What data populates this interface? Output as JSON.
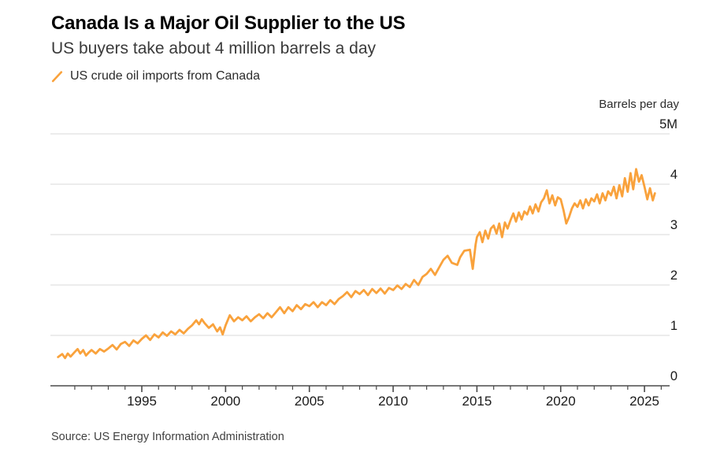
{
  "header": {
    "title": "Canada Is a Major Oil Supplier to the US",
    "subtitle": "US buyers take about 4 million barrels a day"
  },
  "source": {
    "text": "Source: US Energy Information Administration"
  },
  "icons": {
    "legend_key": "orange-slash-icon"
  },
  "colors": {
    "series_orange": "#F9A23C",
    "grid": "#d8d8d8",
    "axis": "#4a4a4a",
    "title_text": "#000000",
    "subtitle_text": "#3a3a3a",
    "tick_text": "#1a1a1a",
    "background": "#ffffff"
  },
  "chart_data": {
    "type": "line",
    "title": "Canada Is a Major Oil Supplier to the US",
    "subtitle": "US buyers take about 4 million barrels a day",
    "legend": "US crude oil imports from Canada",
    "ylabel": "Barrels per day",
    "unit": "million barrels per day",
    "xlim": [
      1990,
      2026
    ],
    "ylim": [
      0,
      5
    ],
    "y_ticks": [
      0,
      1,
      2,
      3,
      4,
      5
    ],
    "y_tick_labels": [
      "0",
      "1",
      "2",
      "3",
      "4",
      "5M"
    ],
    "x_major_ticks": [
      1995,
      2000,
      2005,
      2010,
      2015,
      2020,
      2025
    ],
    "x_minor_tick_step_years": 1,
    "x_minor_tick_range": [
      1991,
      2026
    ],
    "grid": "horizontal-only",
    "legend_position": "top-left",
    "y_labels_position": "right-above-gridline",
    "series": [
      {
        "name": "US crude oil imports from Canada",
        "color": "#F9A23C",
        "points": [
          [
            1990.0,
            0.57
          ],
          [
            1990.25,
            0.63
          ],
          [
            1990.42,
            0.55
          ],
          [
            1990.58,
            0.64
          ],
          [
            1990.75,
            0.58
          ],
          [
            1991.0,
            0.67
          ],
          [
            1991.17,
            0.73
          ],
          [
            1991.33,
            0.64
          ],
          [
            1991.5,
            0.71
          ],
          [
            1991.67,
            0.6
          ],
          [
            1991.83,
            0.66
          ],
          [
            1992.0,
            0.71
          ],
          [
            1992.25,
            0.64
          ],
          [
            1992.5,
            0.73
          ],
          [
            1992.75,
            0.68
          ],
          [
            1993.0,
            0.74
          ],
          [
            1993.25,
            0.81
          ],
          [
            1993.5,
            0.72
          ],
          [
            1993.75,
            0.83
          ],
          [
            1994.0,
            0.87
          ],
          [
            1994.25,
            0.79
          ],
          [
            1994.5,
            0.9
          ],
          [
            1994.75,
            0.84
          ],
          [
            1995.0,
            0.93
          ],
          [
            1995.25,
            1.0
          ],
          [
            1995.5,
            0.91
          ],
          [
            1995.75,
            1.02
          ],
          [
            1996.0,
            0.96
          ],
          [
            1996.25,
            1.06
          ],
          [
            1996.5,
            0.99
          ],
          [
            1996.75,
            1.08
          ],
          [
            1997.0,
            1.02
          ],
          [
            1997.25,
            1.11
          ],
          [
            1997.5,
            1.04
          ],
          [
            1997.75,
            1.13
          ],
          [
            1998.0,
            1.2
          ],
          [
            1998.25,
            1.3
          ],
          [
            1998.42,
            1.22
          ],
          [
            1998.58,
            1.32
          ],
          [
            1998.75,
            1.24
          ],
          [
            1999.0,
            1.15
          ],
          [
            1999.25,
            1.22
          ],
          [
            1999.5,
            1.08
          ],
          [
            1999.67,
            1.16
          ],
          [
            1999.83,
            1.02
          ],
          [
            2000.0,
            1.2
          ],
          [
            2000.25,
            1.4
          ],
          [
            2000.5,
            1.28
          ],
          [
            2000.75,
            1.36
          ],
          [
            2001.0,
            1.3
          ],
          [
            2001.25,
            1.38
          ],
          [
            2001.5,
            1.28
          ],
          [
            2001.75,
            1.36
          ],
          [
            2002.0,
            1.42
          ],
          [
            2002.25,
            1.34
          ],
          [
            2002.5,
            1.44
          ],
          [
            2002.75,
            1.36
          ],
          [
            2003.0,
            1.46
          ],
          [
            2003.25,
            1.56
          ],
          [
            2003.5,
            1.44
          ],
          [
            2003.75,
            1.56
          ],
          [
            2004.0,
            1.48
          ],
          [
            2004.25,
            1.6
          ],
          [
            2004.5,
            1.52
          ],
          [
            2004.75,
            1.62
          ],
          [
            2005.0,
            1.58
          ],
          [
            2005.25,
            1.66
          ],
          [
            2005.5,
            1.56
          ],
          [
            2005.75,
            1.66
          ],
          [
            2006.0,
            1.6
          ],
          [
            2006.25,
            1.7
          ],
          [
            2006.5,
            1.62
          ],
          [
            2006.75,
            1.72
          ],
          [
            2007.0,
            1.78
          ],
          [
            2007.25,
            1.86
          ],
          [
            2007.5,
            1.76
          ],
          [
            2007.75,
            1.88
          ],
          [
            2008.0,
            1.82
          ],
          [
            2008.25,
            1.9
          ],
          [
            2008.5,
            1.8
          ],
          [
            2008.75,
            1.92
          ],
          [
            2009.0,
            1.84
          ],
          [
            2009.25,
            1.93
          ],
          [
            2009.5,
            1.83
          ],
          [
            2009.75,
            1.94
          ],
          [
            2010.0,
            1.9
          ],
          [
            2010.25,
            1.99
          ],
          [
            2010.5,
            1.92
          ],
          [
            2010.75,
            2.02
          ],
          [
            2011.0,
            1.96
          ],
          [
            2011.25,
            2.1
          ],
          [
            2011.5,
            2.0
          ],
          [
            2011.75,
            2.16
          ],
          [
            2012.0,
            2.22
          ],
          [
            2012.25,
            2.32
          ],
          [
            2012.5,
            2.2
          ],
          [
            2012.75,
            2.35
          ],
          [
            2013.0,
            2.5
          ],
          [
            2013.25,
            2.58
          ],
          [
            2013.5,
            2.44
          ],
          [
            2013.83,
            2.4
          ],
          [
            2014.0,
            2.55
          ],
          [
            2014.25,
            2.68
          ],
          [
            2014.58,
            2.7
          ],
          [
            2014.75,
            2.32
          ],
          [
            2014.92,
            2.8
          ],
          [
            2015.0,
            2.95
          ],
          [
            2015.17,
            3.05
          ],
          [
            2015.33,
            2.85
          ],
          [
            2015.5,
            3.08
          ],
          [
            2015.67,
            2.92
          ],
          [
            2015.83,
            3.12
          ],
          [
            2016.0,
            3.18
          ],
          [
            2016.17,
            3.02
          ],
          [
            2016.33,
            3.22
          ],
          [
            2016.5,
            2.95
          ],
          [
            2016.67,
            3.24
          ],
          [
            2016.83,
            3.12
          ],
          [
            2017.0,
            3.28
          ],
          [
            2017.17,
            3.42
          ],
          [
            2017.33,
            3.26
          ],
          [
            2017.5,
            3.44
          ],
          [
            2017.67,
            3.3
          ],
          [
            2017.83,
            3.46
          ],
          [
            2018.0,
            3.4
          ],
          [
            2018.17,
            3.56
          ],
          [
            2018.33,
            3.42
          ],
          [
            2018.5,
            3.6
          ],
          [
            2018.67,
            3.46
          ],
          [
            2018.83,
            3.64
          ],
          [
            2019.0,
            3.72
          ],
          [
            2019.17,
            3.88
          ],
          [
            2019.33,
            3.62
          ],
          [
            2019.5,
            3.78
          ],
          [
            2019.67,
            3.58
          ],
          [
            2019.83,
            3.74
          ],
          [
            2020.0,
            3.7
          ],
          [
            2020.17,
            3.48
          ],
          [
            2020.33,
            3.22
          ],
          [
            2020.5,
            3.35
          ],
          [
            2020.67,
            3.52
          ],
          [
            2020.83,
            3.62
          ],
          [
            2021.0,
            3.55
          ],
          [
            2021.17,
            3.68
          ],
          [
            2021.33,
            3.52
          ],
          [
            2021.5,
            3.7
          ],
          [
            2021.67,
            3.58
          ],
          [
            2021.83,
            3.72
          ],
          [
            2022.0,
            3.66
          ],
          [
            2022.17,
            3.8
          ],
          [
            2022.33,
            3.62
          ],
          [
            2022.5,
            3.82
          ],
          [
            2022.67,
            3.68
          ],
          [
            2022.83,
            3.86
          ],
          [
            2023.0,
            3.78
          ],
          [
            2023.17,
            3.95
          ],
          [
            2023.33,
            3.72
          ],
          [
            2023.5,
            3.98
          ],
          [
            2023.67,
            3.76
          ],
          [
            2023.83,
            4.12
          ],
          [
            2024.0,
            3.85
          ],
          [
            2024.17,
            4.22
          ],
          [
            2024.33,
            3.9
          ],
          [
            2024.5,
            4.3
          ],
          [
            2024.67,
            4.05
          ],
          [
            2024.83,
            4.18
          ],
          [
            2025.0,
            3.95
          ],
          [
            2025.17,
            3.7
          ],
          [
            2025.33,
            3.92
          ],
          [
            2025.5,
            3.68
          ],
          [
            2025.62,
            3.82
          ]
        ]
      }
    ],
    "source": "Source: US Energy Information Administration"
  }
}
